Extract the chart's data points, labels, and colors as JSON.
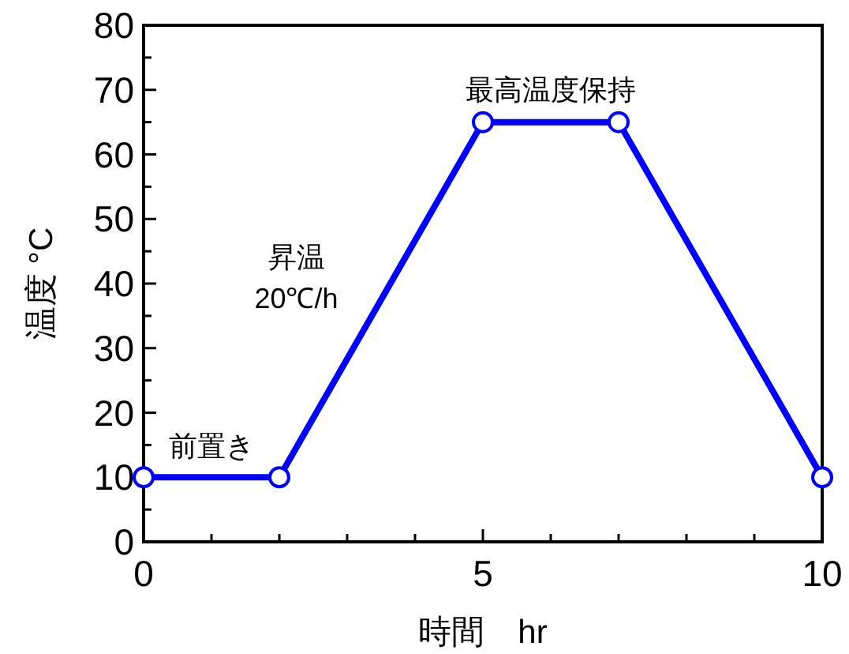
{
  "chart_data": {
    "type": "line",
    "xlabel": "時間　hr",
    "ylabel": "温度 °C",
    "x": [
      0,
      2,
      5,
      7,
      10
    ],
    "series": [
      {
        "color": "#0000ff",
        "values": [
          10,
          10,
          65,
          65,
          10
        ]
      }
    ],
    "marker": "circle",
    "line_style": "solid",
    "xlim": [
      0,
      10
    ],
    "ylim": [
      0,
      80
    ],
    "xticks": [
      0,
      {
        "value": 1,
        "label": null
      },
      {
        "value": 2,
        "label": null
      },
      {
        "value": 3,
        "label": null
      },
      {
        "value": 4,
        "label": null
      },
      5,
      {
        "value": 6,
        "label": null
      },
      {
        "value": 7,
        "label": null
      },
      {
        "value": 8,
        "label": null
      },
      {
        "value": 9,
        "label": null
      },
      10
    ],
    "yticks": [
      0,
      {
        "value": 5,
        "label": null
      },
      10,
      {
        "value": 15,
        "label": null
      },
      20,
      {
        "value": 25,
        "label": null
      },
      30,
      {
        "value": 35,
        "label": null
      },
      40,
      {
        "value": 45,
        "label": null
      },
      50,
      {
        "value": 55,
        "label": null
      },
      60,
      {
        "value": 65,
        "label": null
      },
      70,
      {
        "value": 75,
        "label": null
      },
      80
    ],
    "annotations": [
      "前置き",
      "昇温\n20℃/h",
      "最高温度保持"
    ]
  }
}
